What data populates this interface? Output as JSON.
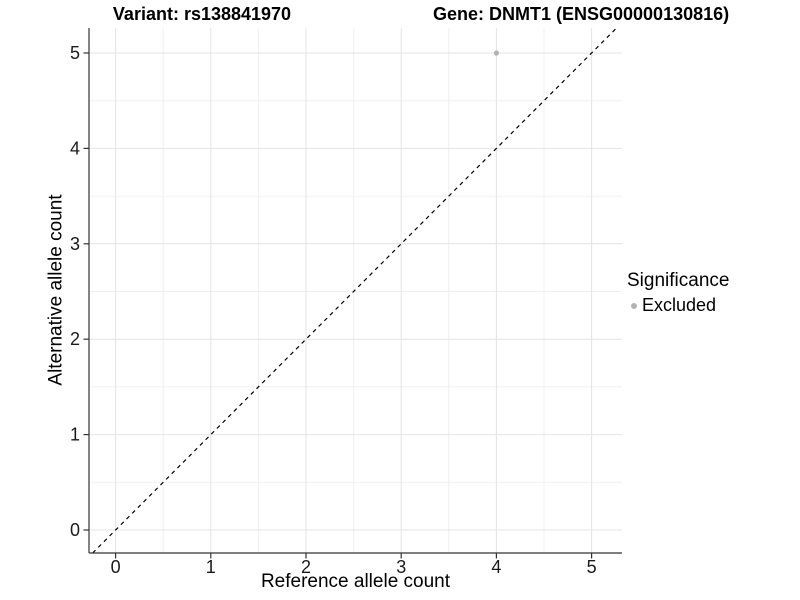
{
  "titles": {
    "left": "Variant: rs138841970",
    "right": "Gene: DNMT1 (ENSG00000130816)"
  },
  "chart_data": {
    "type": "scatter",
    "title": "Variant: rs138841970    Gene: DNMT1 (ENSG00000130816)",
    "xlabel": "Reference allele count",
    "ylabel": "Alternative allele count",
    "x_ticks": [
      0,
      1,
      2,
      3,
      4,
      5
    ],
    "y_ticks": [
      0,
      1,
      2,
      3,
      4,
      5
    ],
    "xlim": [
      -0.28,
      5.32
    ],
    "ylim": [
      -0.24,
      5.26
    ],
    "minor_grid_step": 0.5,
    "grid": true,
    "series": [
      {
        "name": "Excluded",
        "points": [
          {
            "x": 4,
            "y": 5
          }
        ],
        "color": "#B3B3B3"
      }
    ],
    "reference_line": {
      "type": "identity",
      "slope": 1,
      "intercept": 0,
      "style": "dashed",
      "color": "#000000"
    },
    "legend": {
      "title": "Significance",
      "position": "right",
      "items": [
        {
          "label": "Excluded",
          "color": "#B3B3B3",
          "marker": "circle"
        }
      ]
    }
  },
  "colors": {
    "background": "#FFFFFF",
    "grid_major": "#E4E4E4",
    "grid_minor": "#F0F0F0",
    "axis_line": "#333333",
    "tick_mark": "#333333",
    "tick_text": "#1A1A1A",
    "point": "#B3B3B3",
    "dashed_line": "#000000"
  }
}
